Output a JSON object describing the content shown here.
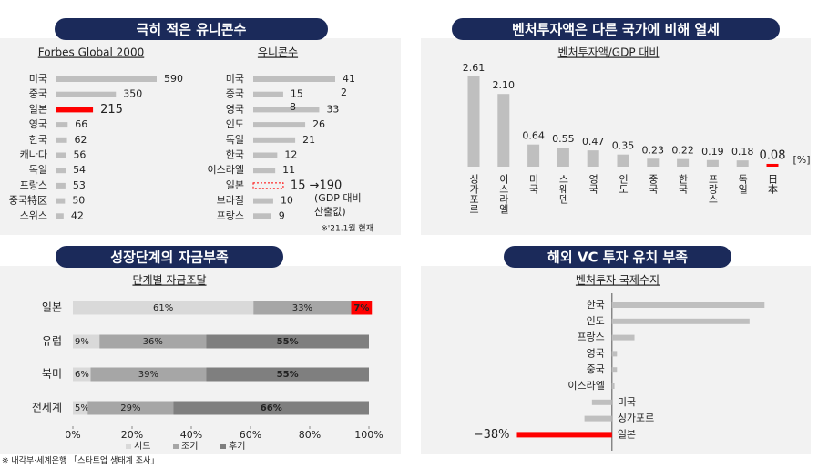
{
  "chart_data": [
    {
      "type": "hbar",
      "title": "극히 적은 유니콘수",
      "subtitle": "Forbes Global 2000",
      "categories": [
        "미국",
        "중국",
        "일본",
        "영국",
        "한국",
        "캐나다",
        "독일",
        "프랑스",
        "중국特区",
        "스위스"
      ],
      "values": [
        590,
        350,
        215,
        66,
        62,
        56,
        54,
        53,
        50,
        42
      ],
      "colors": [
        "#bfbfbf",
        "#bfbfbf",
        "#ff0000",
        "#bfbfbf",
        "#bfbfbf",
        "#bfbfbf",
        "#bfbfbf",
        "#bfbfbf",
        "#bfbfbf",
        "#bfbfbf"
      ]
    },
    {
      "type": "hbar",
      "subtitle": "유니콘수",
      "categories": [
        "미국",
        "중국",
        "영국",
        "인도",
        "독일",
        "한국",
        "이스라엘",
        "일본",
        "브라질",
        "프랑스"
      ],
      "values": [
        41,
        15,
        33,
        26,
        21,
        12,
        11,
        15,
        10,
        9
      ],
      "value_labels": [
        "41",
        "15",
        "33",
        "26",
        "21",
        "12",
        "11",
        "15 →190",
        "10",
        "9"
      ],
      "colors": [
        "#bfbfbf",
        "#bfbfbf",
        "#bfbfbf",
        "#bfbfbf",
        "#bfbfbf",
        "#bfbfbf",
        "#bfbfbf",
        "#ff0000",
        "#bfbfbf",
        "#bfbfbf"
      ],
      "dashed_index": 7,
      "annotations": [
        "2",
        "8",
        "(GDP 대비",
        "산출값)"
      ],
      "note": "※'21.1월 현재"
    },
    {
      "type": "bar",
      "title": "벤처투자액은 다른 국가에 비해 열세",
      "subtitle": "벤처투자액/GDP 대비",
      "categories": [
        "싱가포르",
        "이스라엘",
        "미국",
        "스웨덴",
        "영국",
        "인도",
        "중국",
        "한국",
        "프랑스",
        "독일",
        "日本"
      ],
      "values": [
        2.61,
        2.1,
        0.64,
        0.55,
        0.47,
        0.35,
        0.23,
        0.22,
        0.19,
        0.18,
        0.08
      ],
      "value_labels": [
        "2.61",
        "2.10",
        "0.64",
        "0.55",
        "0.47",
        "0.35",
        "0.23",
        "0.22",
        "0.19",
        "0.18",
        "0.08"
      ],
      "colors": [
        "#bfbfbf",
        "#bfbfbf",
        "#bfbfbf",
        "#bfbfbf",
        "#bfbfbf",
        "#bfbfbf",
        "#bfbfbf",
        "#bfbfbf",
        "#bfbfbf",
        "#bfbfbf",
        "#ff0000"
      ],
      "ylim": [
        0,
        3
      ],
      "unit": "[%]"
    },
    {
      "type": "stacked_hbar",
      "title": "성장단계의 자금부족",
      "subtitle": "단계별 자금조달",
      "categories": [
        "일본",
        "유럽",
        "북미",
        "전세계"
      ],
      "series": [
        {
          "name": "시드",
          "color": "#d9d9d9",
          "values": [
            61,
            9,
            6,
            5
          ],
          "value_labels": [
            "61%",
            "9%",
            "6%",
            "5%"
          ]
        },
        {
          "name": "조기",
          "color": "#a6a6a6",
          "values": [
            33,
            36,
            39,
            29
          ],
          "value_labels": [
            "33%",
            "36%",
            "39%",
            "29%"
          ]
        },
        {
          "name": "후기",
          "color": "#7f7f7f",
          "values": [
            7,
            55,
            55,
            66
          ],
          "value_labels": [
            "7%",
            "55%",
            "55%",
            "66%"
          ],
          "colors": [
            "#ff0000",
            "#7f7f7f",
            "#7f7f7f",
            "#7f7f7f"
          ]
        }
      ],
      "xlim": [
        0,
        100
      ],
      "xticks": [
        {
          "value": 0,
          "label": "0%"
        },
        {
          "value": 20,
          "label": "20%"
        },
        {
          "value": 40,
          "label": "40%"
        },
        {
          "value": 60,
          "label": "60%"
        },
        {
          "value": 80,
          "label": "80%"
        },
        {
          "value": 100,
          "label": "100%"
        }
      ]
    },
    {
      "type": "diverging_hbar",
      "title": "해외 VC 투자 유치 부족",
      "subtitle": "벤처투자 국제수지",
      "categories": [
        "한국",
        "인도",
        "프랑스",
        "영국",
        "중국",
        "이스라엘",
        "미국",
        "싱가포르",
        "일본"
      ],
      "values": [
        61,
        55,
        9,
        2,
        2,
        1,
        -8,
        -11,
        -38
      ],
      "colors": [
        "#bfbfbf",
        "#bfbfbf",
        "#bfbfbf",
        "#bfbfbf",
        "#bfbfbf",
        "#bfbfbf",
        "#bfbfbf",
        "#bfbfbf",
        "#ff0000"
      ],
      "highlight_label": "−38%",
      "xlim": [
        -40,
        70
      ]
    }
  ],
  "source": "※ 내각부·세계은행 「스타트업 생태계 조사」"
}
